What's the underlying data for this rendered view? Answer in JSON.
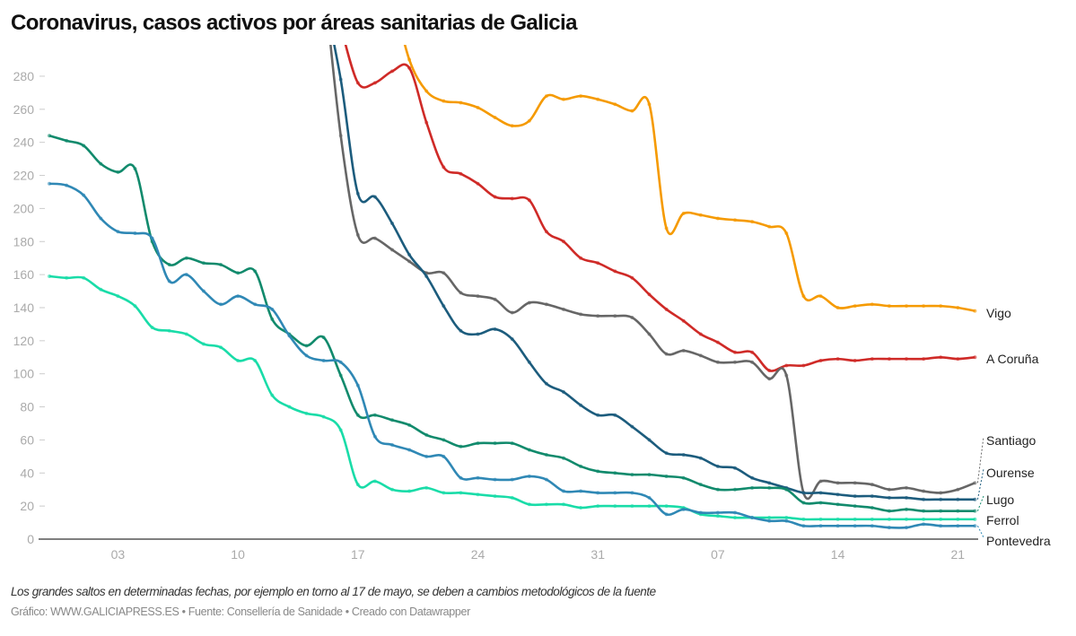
{
  "title": "Coronavirus, casos activos por áreas sanitarias de Galicia",
  "note": "Los grandes saltos en determinadas fechas, por ejemplo en torno al 17 de mayo, se deben a cambios metodológicos de la fuente",
  "credit": "Gráfico: WWW.GALICIAPRESS.ES • Fuente: Consellería de Sanidade • Creado con Datawrapper",
  "chart_data": {
    "type": "line",
    "title": "Coronavirus, casos activos por áreas sanitarias de Galicia",
    "xlabel": "",
    "ylabel": "",
    "ylim": [
      0,
      291
    ],
    "yticks": [
      0,
      20,
      40,
      60,
      80,
      100,
      120,
      140,
      160,
      180,
      200,
      220,
      240,
      260,
      280
    ],
    "xticks": [
      {
        "x": "05-03",
        "label": "03"
      },
      {
        "x": "05-10",
        "label": "10"
      },
      {
        "x": "05-17",
        "label": "17"
      },
      {
        "x": "05-24",
        "label": "24"
      },
      {
        "x": "05-31",
        "label": "31"
      },
      {
        "x": "06-07",
        "label": "07"
      },
      {
        "x": "06-14",
        "label": "14"
      },
      {
        "x": "06-21",
        "label": "21"
      }
    ],
    "grid": false,
    "legend": "direct labels right",
    "x": [
      "04-29",
      "04-30",
      "05-01",
      "05-02",
      "05-03",
      "05-04",
      "05-05",
      "05-06",
      "05-07",
      "05-08",
      "05-09",
      "05-10",
      "05-11",
      "05-12",
      "05-13",
      "05-14",
      "05-15",
      "05-16",
      "05-17",
      "05-18",
      "05-19",
      "05-20",
      "05-21",
      "05-22",
      "05-23",
      "05-24",
      "05-25",
      "05-26",
      "05-27",
      "05-28",
      "05-29",
      "05-30",
      "05-31",
      "06-01",
      "06-02",
      "06-03",
      "06-04",
      "06-05",
      "06-06",
      "06-07",
      "06-08",
      "06-09",
      "06-10",
      "06-11",
      "06-12",
      "06-13",
      "06-14",
      "06-15",
      "06-16",
      "06-17",
      "06-18",
      "06-19",
      "06-20",
      "06-21",
      "06-22"
    ],
    "series": [
      {
        "name": "Vigo",
        "color": "#f59a00",
        "values": [
          null,
          null,
          null,
          null,
          null,
          null,
          null,
          null,
          null,
          null,
          null,
          null,
          null,
          null,
          null,
          null,
          null,
          null,
          null,
          null,
          330,
          290,
          271,
          265,
          264,
          261,
          255,
          250,
          253,
          268,
          266,
          268,
          266,
          263,
          259,
          263,
          188,
          197,
          196,
          194,
          193,
          192,
          189,
          185,
          147,
          147,
          140,
          141,
          142,
          141,
          141,
          141,
          141,
          140,
          138
        ]
      },
      {
        "name": "A Coruña",
        "color": "#cf2a27",
        "values": [
          null,
          null,
          null,
          null,
          null,
          null,
          null,
          null,
          null,
          null,
          null,
          null,
          null,
          null,
          null,
          null,
          null,
          310,
          276,
          276,
          283,
          285,
          252,
          225,
          221,
          215,
          207,
          206,
          205,
          186,
          180,
          170,
          167,
          162,
          158,
          148,
          139,
          132,
          124,
          119,
          113,
          113,
          102,
          105,
          105,
          108,
          109,
          108,
          109,
          109,
          109,
          109,
          110,
          109,
          110
        ]
      },
      {
        "name": "Santiago",
        "color": "#666666",
        "values": [
          null,
          null,
          null,
          null,
          null,
          null,
          null,
          null,
          null,
          null,
          null,
          null,
          null,
          null,
          null,
          null,
          340,
          244,
          184,
          182,
          175,
          168,
          161,
          161,
          149,
          147,
          145,
          137,
          143,
          142,
          139,
          136,
          135,
          135,
          134,
          124,
          112,
          114,
          111,
          107,
          107,
          107,
          97,
          99,
          28,
          35,
          34,
          34,
          33,
          30,
          31,
          29,
          28,
          30,
          34
        ]
      },
      {
        "name": "Ourense",
        "color": "#1c5c7d",
        "values": [
          null,
          null,
          null,
          null,
          null,
          null,
          null,
          null,
          null,
          null,
          null,
          null,
          null,
          null,
          null,
          null,
          330,
          278,
          209,
          207,
          191,
          172,
          159,
          141,
          126,
          124,
          127,
          121,
          107,
          94,
          89,
          81,
          75,
          75,
          68,
          60,
          52,
          51,
          49,
          44,
          43,
          37,
          34,
          31,
          28,
          28,
          27,
          26,
          26,
          25,
          25,
          24,
          24,
          24,
          24
        ]
      },
      {
        "name": "Lugo",
        "color": "#118a6c",
        "values": [
          244,
          241,
          238,
          227,
          222,
          224,
          180,
          166,
          170,
          167,
          166,
          161,
          162,
          133,
          124,
          117,
          122,
          99,
          75,
          75,
          72,
          69,
          63,
          60,
          56,
          58,
          58,
          58,
          54,
          51,
          49,
          44,
          41,
          40,
          39,
          39,
          38,
          37,
          33,
          30,
          30,
          31,
          31,
          30,
          22,
          22,
          21,
          20,
          19,
          17,
          18,
          17,
          17,
          17,
          17
        ]
      },
      {
        "name": "Ferrol",
        "color": "#19dca8",
        "values": [
          159,
          158,
          158,
          151,
          147,
          141,
          128,
          126,
          124,
          118,
          116,
          108,
          108,
          87,
          80,
          76,
          74,
          66,
          33,
          35,
          30,
          29,
          31,
          28,
          28,
          27,
          26,
          25,
          21,
          21,
          21,
          19,
          20,
          20,
          20,
          20,
          20,
          19,
          15,
          14,
          13,
          13,
          13,
          13,
          12,
          12,
          12,
          12,
          12,
          12,
          12,
          12,
          12,
          12,
          12
        ]
      },
      {
        "name": "Pontevedra",
        "color": "#2f88b5",
        "values": [
          215,
          214,
          208,
          194,
          186,
          185,
          182,
          156,
          160,
          150,
          142,
          147,
          142,
          139,
          123,
          111,
          108,
          107,
          93,
          62,
          57,
          54,
          50,
          50,
          37,
          37,
          36,
          36,
          38,
          36,
          29,
          29,
          28,
          28,
          28,
          25,
          15,
          18,
          16,
          16,
          16,
          13,
          11,
          11,
          8,
          8,
          8,
          8,
          8,
          7,
          7,
          9,
          8,
          8,
          8
        ]
      }
    ]
  }
}
